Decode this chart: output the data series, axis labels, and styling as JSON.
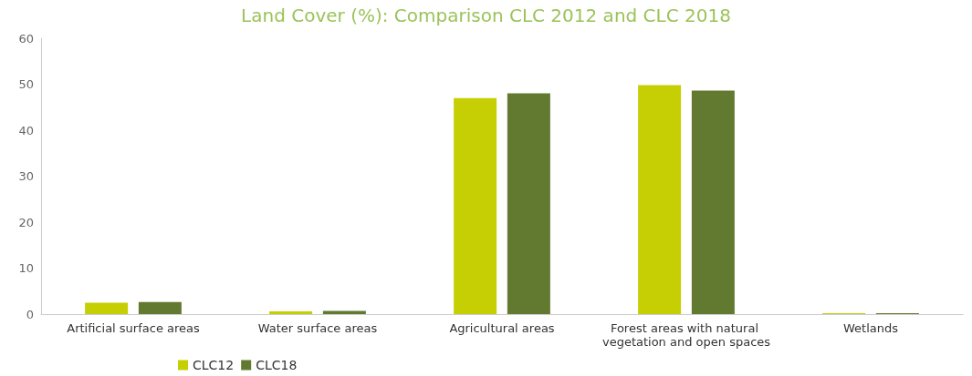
{
  "chart_data": {
    "type": "bar",
    "title": "Land Cover (%): Comparison CLC 2012 and CLC 2018",
    "categories": [
      "Artificial surface areas",
      "Water surface areas",
      "Agricultural areas",
      "Forest areas with natural vegetation and open spaces",
      "Wetlands"
    ],
    "series": [
      {
        "name": "CLC12",
        "color": "#c5cf04",
        "values": [
          2.5,
          0.6,
          47.0,
          49.8,
          0.2
        ]
      },
      {
        "name": "CLC18",
        "color": "#627a30",
        "values": [
          2.6,
          0.7,
          48.0,
          48.6,
          0.2
        ]
      }
    ],
    "ylim": [
      0,
      60
    ],
    "yticks": [
      0,
      10,
      20,
      30,
      40,
      50,
      60
    ],
    "grid": false,
    "legend": "bottom left"
  }
}
